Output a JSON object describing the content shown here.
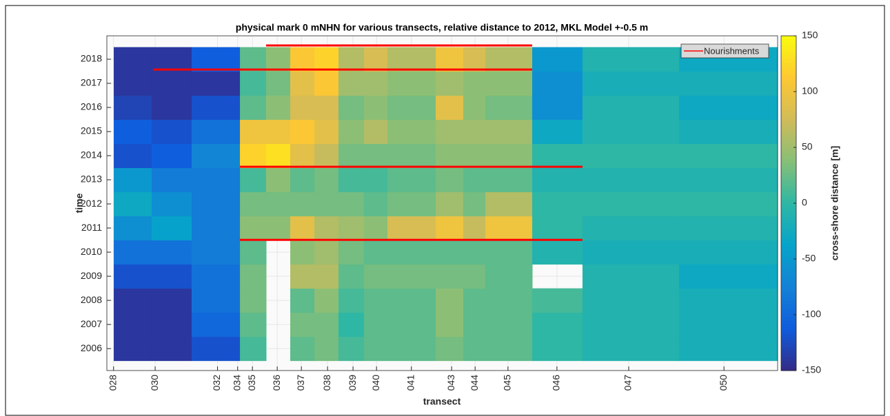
{
  "chart_data": {
    "type": "heatmap",
    "title": "physical mark 0 mNHN for various transects, relative distance to 2012, MKL Model +-0.5 m",
    "xlabel": "transect",
    "ylabel": "time",
    "colorbar_label": "cross-shore distance [m]",
    "xlim": [
      0,
      100
    ],
    "ylim": [
      2005.09,
      2018.97
    ],
    "xticks": [
      {
        "value": 1.0,
        "label": "028"
      },
      {
        "value": 7.2,
        "label": "030"
      },
      {
        "value": 16.5,
        "label": "032"
      },
      {
        "value": 19.5,
        "label": "034"
      },
      {
        "value": 21.7,
        "label": "035"
      },
      {
        "value": 25.4,
        "label": "036"
      },
      {
        "value": 29.0,
        "label": "037"
      },
      {
        "value": 32.9,
        "label": "038"
      },
      {
        "value": 36.7,
        "label": "039"
      },
      {
        "value": 40.2,
        "label": "040"
      },
      {
        "value": 45.4,
        "label": "041"
      },
      {
        "value": 51.4,
        "label": "043"
      },
      {
        "value": 54.9,
        "label": "044"
      },
      {
        "value": 59.8,
        "label": "045"
      },
      {
        "value": 67.1,
        "label": "046"
      },
      {
        "value": 77.8,
        "label": "047"
      },
      {
        "value": 92.0,
        "label": "050"
      }
    ],
    "yticks": [
      2006,
      2007,
      2008,
      2009,
      2010,
      2011,
      2012,
      2013,
      2014,
      2015,
      2016,
      2017,
      2018
    ],
    "grid": true,
    "x_edges": [
      1.03,
      6.68,
      12.64,
      19.84,
      23.74,
      27.34,
      30.94,
      34.53,
      38.33,
      41.83,
      49.02,
      53.13,
      56.42,
      63.41,
      70.91,
      85.3,
      100
    ],
    "y_edges": [
      2005.5,
      2006.5,
      2007.5,
      2008.5,
      2009.5,
      2010.5,
      2011.5,
      2012.5,
      2013.5,
      2014.5,
      2015.5,
      2016.5,
      2017.5,
      2018.5
    ],
    "z": [
      [
        -140,
        -140,
        -120,
        10,
        null,
        20,
        30,
        10,
        20,
        20,
        30,
        20,
        20,
        0,
        -10,
        -20
      ],
      [
        -140,
        -140,
        -100,
        20,
        null,
        30,
        30,
        0,
        20,
        20,
        40,
        20,
        20,
        0,
        -10,
        -20
      ],
      [
        -140,
        -140,
        -90,
        30,
        null,
        20,
        40,
        10,
        20,
        20,
        40,
        20,
        20,
        10,
        -10,
        -20
      ],
      [
        -120,
        -120,
        -90,
        30,
        null,
        60,
        60,
        20,
        30,
        30,
        30,
        30,
        20,
        null,
        -10,
        -30
      ],
      [
        -90,
        -90,
        -80,
        20,
        null,
        40,
        50,
        30,
        20,
        20,
        20,
        20,
        20,
        -10,
        -20,
        -20
      ],
      [
        -60,
        -40,
        -80,
        40,
        40,
        90,
        60,
        50,
        40,
        80,
        100,
        70,
        100,
        0,
        -10,
        -10
      ],
      [
        -30,
        -60,
        -80,
        30,
        30,
        30,
        30,
        30,
        20,
        30,
        50,
        30,
        60,
        0,
        0,
        0
      ],
      [
        -50,
        -80,
        -80,
        10,
        40,
        20,
        30,
        10,
        10,
        20,
        30,
        20,
        20,
        -10,
        -10,
        -10
      ],
      [
        -120,
        -110,
        -70,
        120,
        130,
        90,
        70,
        30,
        30,
        30,
        40,
        40,
        40,
        0,
        0,
        0
      ],
      [
        -110,
        -120,
        -90,
        100,
        100,
        110,
        90,
        40,
        60,
        40,
        50,
        50,
        50,
        -30,
        -10,
        -20
      ],
      [
        -130,
        -140,
        -120,
        20,
        40,
        80,
        80,
        30,
        40,
        30,
        90,
        40,
        30,
        -60,
        -10,
        -30
      ],
      [
        -140,
        -140,
        -140,
        10,
        30,
        90,
        110,
        50,
        50,
        40,
        50,
        40,
        40,
        -60,
        -20,
        -20
      ],
      [
        -140,
        -140,
        -110,
        20,
        40,
        110,
        120,
        60,
        80,
        60,
        100,
        80,
        60,
        -50,
        -10,
        -30
      ]
    ],
    "clim": [
      -150,
      150
    ],
    "cticks": [
      -150,
      -100,
      -50,
      0,
      50,
      100,
      150
    ],
    "colormap": [
      "#352a87",
      "#0f5cdd",
      "#1481d6",
      "#06a4ca",
      "#2eb7a4",
      "#87bf77",
      "#d1bb59",
      "#fec832",
      "#f9fb0e"
    ],
    "overlay": {
      "name": "Nourishments",
      "color": "#ff0000",
      "segments": [
        {
          "x": [
            23.74,
            63.41
          ],
          "y": [
            2018.57,
            2018.57
          ]
        },
        {
          "x": [
            6.89,
            63.41
          ],
          "y": [
            2017.57,
            2017.57
          ]
        },
        {
          "x": [
            19.84,
            70.91
          ],
          "y": [
            2013.54,
            2013.54
          ]
        },
        {
          "x": [
            19.84,
            70.91
          ],
          "y": [
            2010.51,
            2010.51
          ]
        }
      ]
    },
    "legend": "northeast"
  }
}
